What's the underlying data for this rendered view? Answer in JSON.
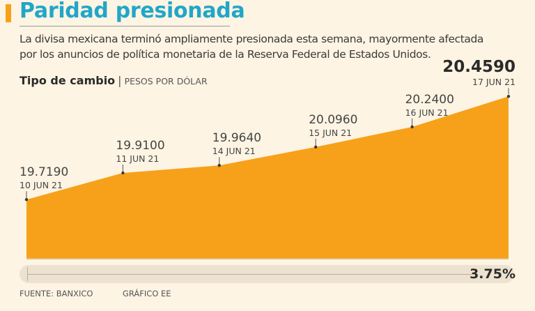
{
  "header": {
    "title": "Paridad presionada",
    "subtitle_line1": "La divisa mexicana terminó ampliamente presionada esta semana, mayormente afectada",
    "subtitle_line2": "por los anuncios de política monetaria de la Reserva Federal de Estados Unidos."
  },
  "chart_data": {
    "type": "area",
    "title": "Tipo de cambio",
    "unit": "PESOS POR DÓLAR",
    "categories": [
      "10 JUN 21",
      "11 JUN 21",
      "14 JUN 21",
      "15 JUN 21",
      "16 JUN 21",
      "17 JUN 21"
    ],
    "value_labels": [
      "19.7190",
      "19.9100",
      "19.9640",
      "20.0960",
      "20.2400",
      "20.4590"
    ],
    "values": [
      19.719,
      19.91,
      19.964,
      20.096,
      20.24,
      20.459
    ],
    "ylim": [
      19.3,
      20.5
    ],
    "grid": false,
    "fill_color": "#f7a11a",
    "change_label": "3.75%",
    "change_value": 3.75
  },
  "footer": {
    "source": "FUENTE: BANXICO",
    "credit": "GRÁFICO EE"
  },
  "colors": {
    "title": "#22a6c8",
    "accent": "#f7a11a",
    "background": "#fdf4e3"
  }
}
